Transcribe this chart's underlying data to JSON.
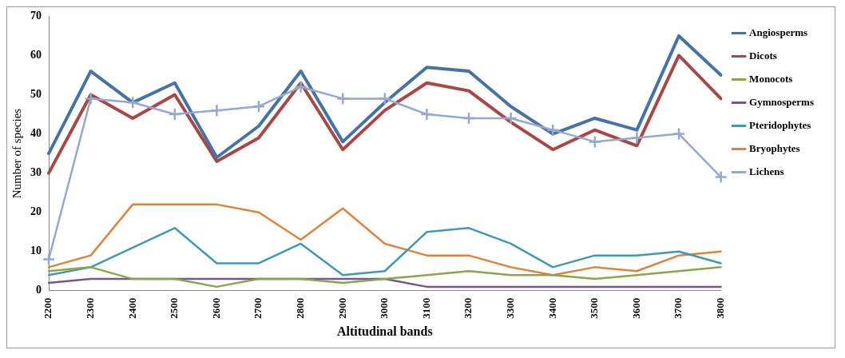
{
  "chart_data": {
    "type": "line",
    "xlabel": "Altitudinal bands",
    "ylabel": "Number of species",
    "categories": [
      "2200",
      "2300",
      "2400",
      "2500",
      "2600",
      "2700",
      "2800",
      "2900",
      "3000",
      "3100",
      "3200",
      "3300",
      "3400",
      "3500",
      "3600",
      "3700",
      "3800"
    ],
    "ylim": [
      0,
      70
    ],
    "yticks": [
      0,
      10,
      20,
      30,
      40,
      50,
      60,
      70
    ],
    "grid": false,
    "legend": "right",
    "marker": "none",
    "series": [
      {
        "name": "Angiosperms",
        "color": "#4572a7",
        "values": [
          35,
          56,
          48,
          53,
          34,
          42,
          56,
          38,
          48,
          57,
          56,
          47,
          40,
          44,
          41,
          65,
          55
        ]
      },
      {
        "name": "Dicots",
        "color": "#aa4643",
        "values": [
          30,
          50,
          44,
          50,
          33,
          39,
          53,
          36,
          46,
          53,
          51,
          43,
          36,
          41,
          37,
          60,
          49
        ]
      },
      {
        "name": "Monocots",
        "color": "#89a54e",
        "values": [
          5,
          6,
          3,
          3,
          1,
          3,
          3,
          2,
          3,
          4,
          5,
          4,
          4,
          3,
          4,
          5,
          6
        ]
      },
      {
        "name": "Gymnosperms",
        "color": "#71588f",
        "values": [
          2,
          3,
          3,
          3,
          3,
          3,
          3,
          3,
          3,
          1,
          1,
          1,
          1,
          1,
          1,
          1,
          1
        ]
      },
      {
        "name": "Pteridophytes",
        "color": "#4198af",
        "values": [
          4,
          6,
          11,
          16,
          7,
          7,
          12,
          4,
          5,
          15,
          16,
          12,
          6,
          9,
          9,
          10,
          7
        ]
      },
      {
        "name": "Bryophytes",
        "color": "#db843d",
        "values": [
          6,
          9,
          22,
          22,
          22,
          20,
          13,
          21,
          12,
          9,
          9,
          6,
          4,
          6,
          5,
          9,
          10
        ]
      },
      {
        "name": "Lichens",
        "color": "#93a9cf",
        "marker": "cross",
        "values": [
          8,
          49,
          48,
          45,
          46,
          47,
          52,
          49,
          49,
          45,
          44,
          44,
          41,
          38,
          39,
          40,
          29
        ]
      }
    ]
  }
}
